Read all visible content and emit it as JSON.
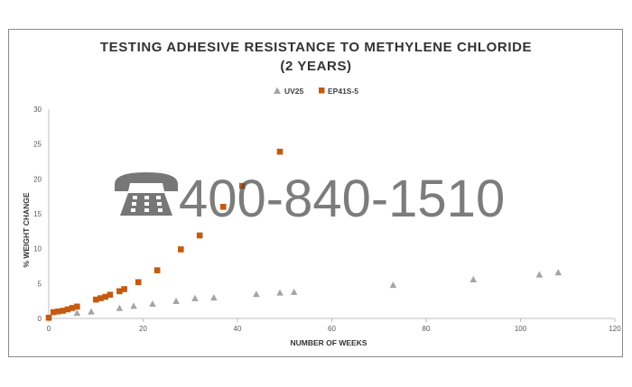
{
  "watermark": {
    "phone": "400-840-1510",
    "icon": "telephone-icon"
  },
  "chart_data": {
    "type": "scatter",
    "title": "TESTING ADHESIVE RESISTANCE TO METHYLENE CHLORIDE",
    "subtitle": "(2 YEARS)",
    "xlabel": "NUMBER OF WEEKS",
    "ylabel": "% WEIGHT CHANGE",
    "xlim": [
      0,
      120
    ],
    "ylim": [
      0,
      30
    ],
    "xticks": [
      0,
      20,
      40,
      60,
      80,
      100,
      120
    ],
    "yticks": [
      0,
      5,
      10,
      15,
      20,
      25,
      30
    ],
    "grid": false,
    "legend_position": "top-center",
    "series": [
      {
        "name": "UV25",
        "marker": "triangle",
        "color": "#a5a5a5",
        "points": [
          [
            6,
            0.8
          ],
          [
            9,
            1.0
          ],
          [
            15,
            1.5
          ],
          [
            18,
            1.8
          ],
          [
            22,
            2.1
          ],
          [
            27,
            2.5
          ],
          [
            31,
            2.9
          ],
          [
            35,
            3.0
          ],
          [
            44,
            3.5
          ],
          [
            49,
            3.7
          ],
          [
            52,
            3.8
          ],
          [
            73,
            4.8
          ],
          [
            90,
            5.6
          ],
          [
            104,
            6.3
          ],
          [
            108,
            6.6
          ]
        ]
      },
      {
        "name": "EP41S-5",
        "marker": "square",
        "color": "#c55a11",
        "points": [
          [
            0,
            0.1
          ],
          [
            1,
            0.9
          ],
          [
            2,
            1.0
          ],
          [
            3,
            1.1
          ],
          [
            4,
            1.3
          ],
          [
            5,
            1.5
          ],
          [
            6,
            1.7
          ],
          [
            10,
            2.7
          ],
          [
            11,
            2.9
          ],
          [
            12,
            3.1
          ],
          [
            13,
            3.4
          ],
          [
            15,
            3.9
          ],
          [
            16,
            4.2
          ],
          [
            19,
            5.2
          ],
          [
            23,
            6.9
          ],
          [
            28,
            9.9
          ],
          [
            32,
            11.9
          ],
          [
            37,
            16.0
          ],
          [
            41,
            19.0
          ],
          [
            49,
            23.9
          ]
        ]
      }
    ]
  }
}
